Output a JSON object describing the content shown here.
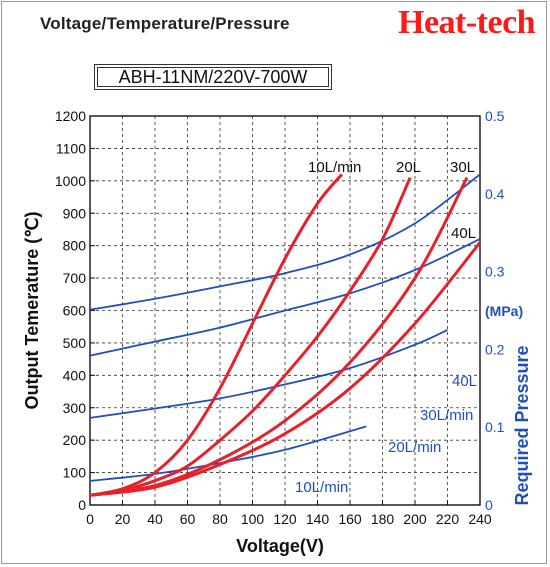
{
  "header": {
    "title": "Voltage/Temperature/Pressure",
    "brand": "Heat-tech",
    "model": "ABH-11NM/220V-700W"
  },
  "colors": {
    "temperature_curves": "#e8202a",
    "pressure_curves": "#1f4fbf",
    "brand": "#ff1a1a",
    "right_axis_text": "#1f4fbf"
  },
  "chart_data": {
    "type": "line",
    "xlabel": "Voltage(V)",
    "ylabel": "Output Temerature (℃)",
    "y2label": "Required Pressure",
    "y2unit": "(MPa)",
    "xlim": [
      0,
      240
    ],
    "ylim": [
      0,
      1200
    ],
    "y2lim": [
      0,
      0.5
    ],
    "xticks": [
      0,
      20,
      40,
      60,
      80,
      100,
      120,
      140,
      160,
      180,
      200,
      220,
      240
    ],
    "yticks": [
      0,
      100,
      200,
      300,
      400,
      500,
      600,
      700,
      800,
      900,
      1000,
      1100,
      1200
    ],
    "y2ticks": [
      0,
      0.1,
      0.2,
      0.3,
      0.4,
      0.5
    ],
    "y2ticklabels": [
      "0",
      "0.1",
      "0.2",
      "0.3",
      "0.4",
      "0.5"
    ],
    "grid": true,
    "temperature_series": [
      {
        "name": "10L/min",
        "x": [
          0,
          20,
          40,
          60,
          80,
          100,
          120,
          140,
          155
        ],
        "y": [
          30,
          50,
          100,
          200,
          360,
          560,
          760,
          930,
          1020
        ]
      },
      {
        "name": "20L",
        "x": [
          0,
          20,
          40,
          60,
          80,
          100,
          120,
          140,
          160,
          180,
          197
        ],
        "y": [
          30,
          45,
          75,
          120,
          200,
          290,
          400,
          520,
          660,
          820,
          1010
        ]
      },
      {
        "name": "30L",
        "x": [
          0,
          40,
          80,
          120,
          160,
          200,
          232
        ],
        "y": [
          30,
          60,
          140,
          260,
          440,
          700,
          1010
        ]
      },
      {
        "name": "40L",
        "x": [
          0,
          40,
          80,
          120,
          160,
          200,
          240
        ],
        "y": [
          30,
          55,
          125,
          220,
          360,
          560,
          810
        ]
      }
    ],
    "pressure_series": [
      {
        "name": "10L/min",
        "x": [
          0,
          40,
          80,
          120,
          170
        ],
        "y": [
          0.031,
          0.04,
          0.054,
          0.071,
          0.101
        ]
      },
      {
        "name": "20L/min",
        "x": [
          0,
          40,
          80,
          120,
          160,
          200,
          220
        ],
        "y": [
          0.112,
          0.124,
          0.137,
          0.155,
          0.176,
          0.206,
          0.225
        ]
      },
      {
        "name": "30L/min",
        "x": [
          0,
          40,
          80,
          120,
          160,
          200,
          240
        ],
        "y": [
          0.192,
          0.21,
          0.228,
          0.25,
          0.272,
          0.302,
          0.342
        ]
      },
      {
        "name": "40L",
        "x": [
          0,
          40,
          80,
          120,
          160,
          200,
          240
        ],
        "y": [
          0.251,
          0.265,
          0.281,
          0.298,
          0.322,
          0.362,
          0.425
        ]
      }
    ]
  }
}
